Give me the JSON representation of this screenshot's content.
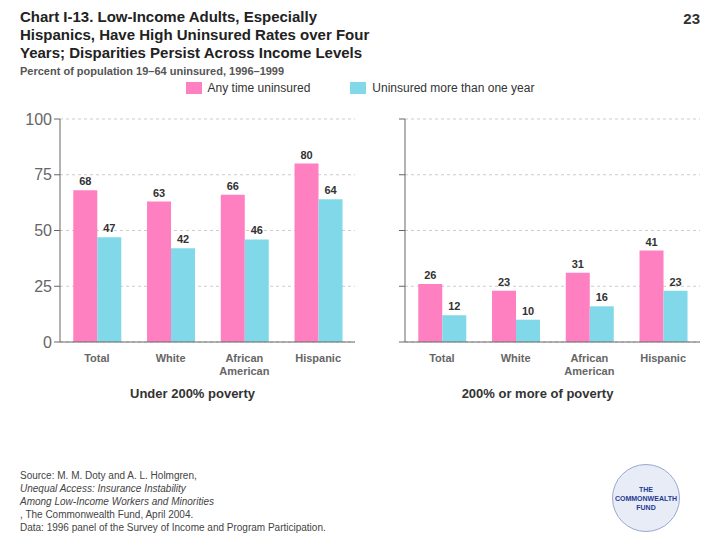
{
  "title": "Chart I-13. Low-Income Adults, Especially\nHispanics, Have High Uninsured Rates over Four\nYears; Disparities Persist Across Income Levels",
  "subtitle": "Percent of population 19–64 uninsured, 1996–1999",
  "annotations": [
    "23",
    "Source: M. M. Doty and A. L. Holmgren, ",
    "Unequal Access: Insurance Instability",
    "Among Low-Income Workers and Minorities",
    ", The Commonwealth Fund, April 2004.",
    "Data: 1996 panel of the Survey of Income and Program Participation.",
    "THE\nCOMMONWEALTH\nFUND"
  ],
  "legend": "top",
  "chart_data": [
    {
      "type": "bar",
      "xlabel": "Under 200% poverty",
      "categories": [
        "Total",
        "White",
        "African\nAmerican",
        "Hispanic"
      ],
      "series": [
        {
          "name": "Any time uninsured",
          "color": "#FF80C0",
          "values": [
            68,
            63,
            66,
            80
          ]
        },
        {
          "name": "Uninsured more than one year",
          "color": "#80D8E8",
          "values": [
            47,
            42,
            46,
            64
          ]
        }
      ],
      "ylim": [
        0,
        100
      ],
      "yticks": [
        0,
        25,
        50,
        75,
        100
      ],
      "grid": true,
      "data_labels": true
    },
    {
      "type": "bar",
      "xlabel": "200% or more of poverty",
      "categories": [
        "Total",
        "White",
        "African\nAmerican",
        "Hispanic"
      ],
      "series": [
        {
          "name": "Any time uninsured",
          "color": "#FF80C0",
          "values": [
            26,
            23,
            31,
            41
          ]
        },
        {
          "name": "Uninsured more than one year",
          "color": "#80D8E8",
          "values": [
            12,
            10,
            16,
            23
          ]
        }
      ],
      "ylim": [
        0,
        100
      ],
      "yticks": [
        0,
        25,
        50,
        75,
        100
      ],
      "grid": true,
      "data_labels": true,
      "tick_labels": "x"
    }
  ]
}
